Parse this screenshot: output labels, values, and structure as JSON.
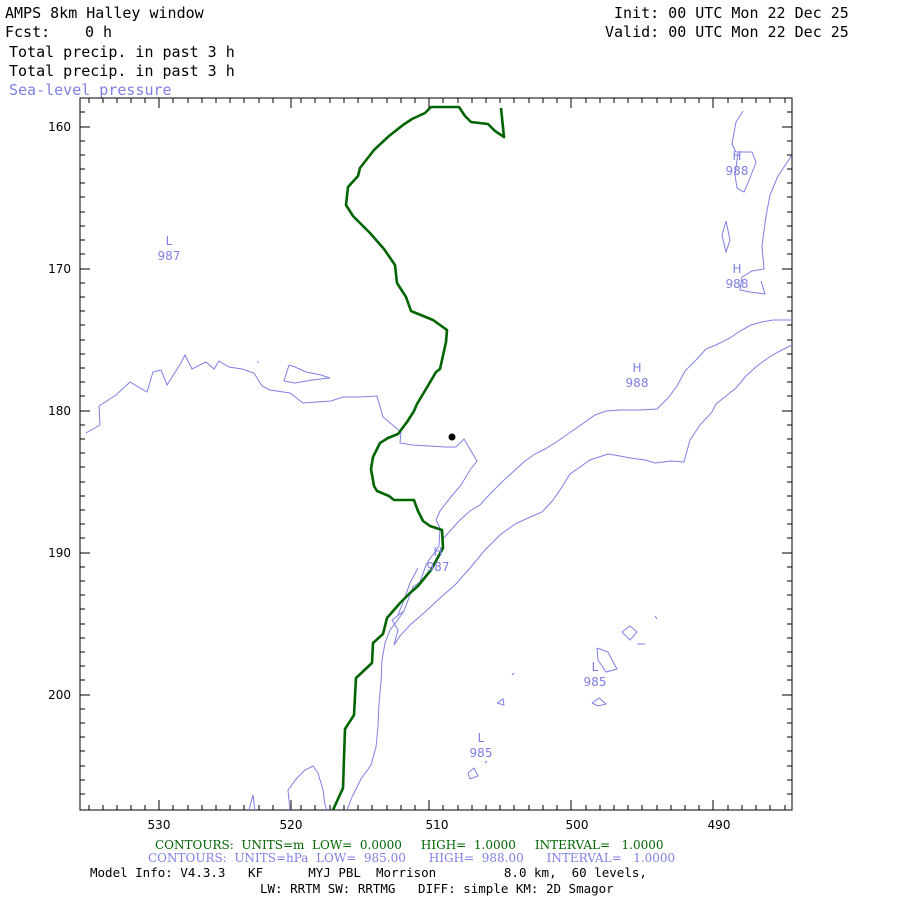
{
  "header": {
    "title": "AMPS 8km Halley window",
    "fcst_label": "Fcst:",
    "fcst_value": "0 h",
    "init": "Init: 00 UTC Mon 22 Dec 25",
    "valid": "Valid: 00 UTC Mon 22 Dec 25",
    "field1": "Total precip. in past 3 h",
    "field2": "Total precip. in past 3 h",
    "field3": "Sea-level pressure"
  },
  "axes": {
    "x_ticks": [
      "530",
      "520",
      "510",
      "500",
      "490"
    ],
    "y_ticks": [
      "160",
      "170",
      "180",
      "190",
      "200"
    ]
  },
  "pressure_labels": [
    {
      "letter": "L",
      "value": "987"
    },
    {
      "letter": "H",
      "value": "988"
    },
    {
      "letter": "H",
      "value": "988"
    },
    {
      "letter": "H",
      "value": "988"
    },
    {
      "letter": "H",
      "value": "987"
    },
    {
      "letter": "L",
      "value": "985"
    },
    {
      "letter": "L",
      "value": "985"
    }
  ],
  "contour_info": {
    "green": "CONTOURS:  UNITS=m  LOW=  0.0000     HIGH=  1.0000     INTERVAL=   1.0000",
    "blue": "CONTOURS:  UNITS=hPa  LOW=  985.00      HIGH=  988.00      INTERVAL=   1.0000"
  },
  "model_info": {
    "line1": "Model Info: V4.3.3   KF      MYJ PBL  Morrison         8.0 km,  60 levels,",
    "line2": "LW: RRTM SW: RRTMG   DIFF: simple KM: 2D Smagor"
  },
  "colors": {
    "precip": "#006400",
    "pressure": "#7f7fe6",
    "marker": "#000000"
  }
}
